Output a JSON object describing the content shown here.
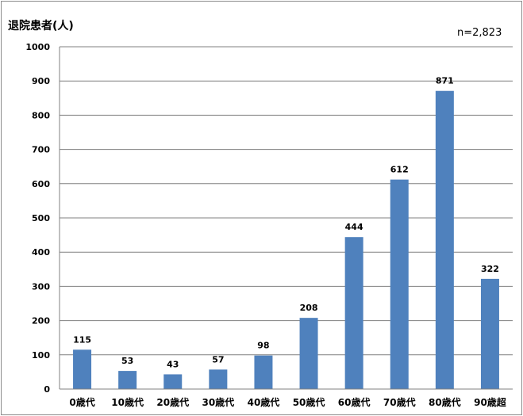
{
  "chart_data": {
    "type": "bar",
    "ylabel": "退院患者(人)",
    "annotation": "n=2,823",
    "categories": [
      "0歳代",
      "10歳代",
      "20歳代",
      "30歳代",
      "40歳代",
      "50歳代",
      "60歳代",
      "70歳代",
      "80歳代",
      "90歳超"
    ],
    "values": [
      115,
      53,
      43,
      57,
      98,
      208,
      444,
      612,
      871,
      322
    ],
    "ylim": [
      0,
      1000
    ],
    "yticks": [
      0,
      100,
      200,
      300,
      400,
      500,
      600,
      700,
      800,
      900,
      1000
    ],
    "grid": true,
    "legend": "none",
    "bar_color": "#4F81BD",
    "grid_color": "#808080"
  }
}
